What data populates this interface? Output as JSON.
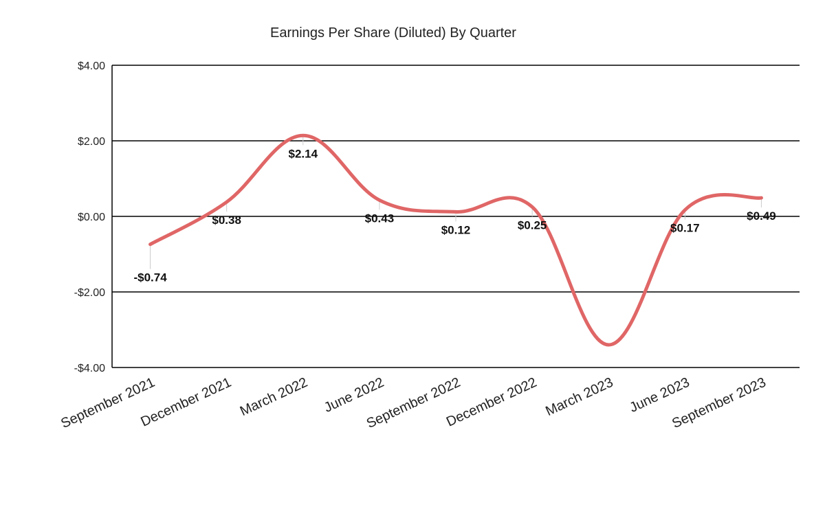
{
  "chart_data": {
    "type": "line",
    "title": "Earnings Per Share (Diluted) By Quarter",
    "xlabel": "",
    "ylabel": "",
    "categories": [
      "September 2021",
      "December 2021",
      "March 2022",
      "June 2022",
      "September 2022",
      "December 2022",
      "March 2023",
      "June 2023",
      "September 2023"
    ],
    "series": [
      {
        "values": [
          -0.74,
          0.38,
          2.14,
          0.43,
          0.12,
          0.25,
          -3.4,
          0.17,
          0.49
        ],
        "labels": [
          "-$0.74",
          "$0.38",
          "$2.14",
          "$0.43",
          "$0.12",
          "$0.25",
          null,
          "$0.17",
          "$0.49"
        ],
        "color": "#e06666"
      }
    ],
    "ylim": [
      -4,
      4
    ],
    "yticks": [
      4,
      2,
      0,
      -2,
      -4
    ],
    "ytick_labels": [
      "$4.00",
      "$2.00",
      "$0.00",
      "-$2.00",
      "-$4.00"
    ],
    "grid": true,
    "legend": "none"
  }
}
